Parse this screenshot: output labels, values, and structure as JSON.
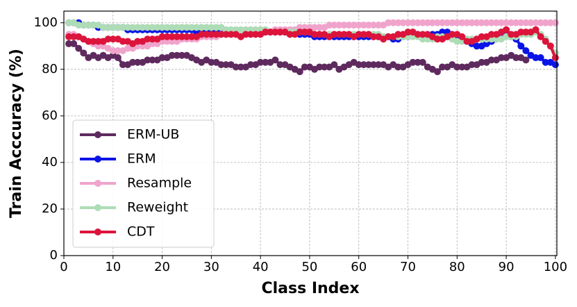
{
  "chart_data": {
    "type": "line",
    "xlabel": "Class Index",
    "ylabel": "Train Acccuracy (%)",
    "x": [
      1,
      2,
      3,
      4,
      5,
      6,
      7,
      8,
      9,
      10,
      11,
      12,
      13,
      14,
      15,
      16,
      17,
      18,
      19,
      20,
      21,
      22,
      23,
      24,
      25,
      26,
      27,
      28,
      29,
      30,
      31,
      32,
      33,
      34,
      35,
      36,
      37,
      38,
      39,
      40,
      41,
      42,
      43,
      44,
      45,
      46,
      47,
      48,
      49,
      50,
      51,
      52,
      53,
      54,
      55,
      56,
      57,
      58,
      59,
      60,
      61,
      62,
      63,
      64,
      65,
      66,
      67,
      68,
      69,
      70,
      71,
      72,
      73,
      74,
      75,
      76,
      77,
      78,
      79,
      80,
      81,
      82,
      83,
      84,
      85,
      86,
      87,
      88,
      89,
      90,
      91,
      92,
      93,
      94,
      95,
      96,
      97,
      98,
      99,
      100
    ],
    "xlim": [
      0,
      100.3
    ],
    "ylim": [
      0,
      105
    ],
    "xticks": [
      0,
      10,
      20,
      30,
      40,
      50,
      60,
      70,
      80,
      90,
      100
    ],
    "yticks": [
      0,
      20,
      40,
      60,
      80,
      100
    ],
    "grid": true,
    "legend": "lower left",
    "series": [
      {
        "name": "ERM-UB",
        "color": "#5e2a5e",
        "values": [
          91,
          91,
          89,
          87,
          85,
          86,
          85,
          86,
          85,
          86,
          85,
          82,
          82,
          83,
          83,
          83,
          84,
          84,
          84,
          85,
          85,
          86,
          86,
          86,
          86,
          85,
          84,
          83,
          84,
          83,
          83,
          82,
          82,
          82,
          81,
          81,
          81,
          82,
          82,
          83,
          83,
          83,
          84,
          82,
          82,
          81,
          80,
          79,
          81,
          81,
          80,
          81,
          81,
          81,
          82,
          80,
          81,
          82,
          83,
          82,
          82,
          82,
          82,
          82,
          82,
          81,
          82,
          81,
          81,
          82,
          83,
          83,
          83,
          81,
          80,
          79,
          81,
          81,
          82,
          81,
          81,
          81,
          82,
          82,
          83,
          83,
          84,
          84,
          85,
          85,
          86,
          85,
          85,
          84,
          null,
          null,
          null,
          null,
          null,
          null
        ]
      },
      {
        "name": "ERM",
        "color": "#0a14e6",
        "values": [
          100,
          100,
          100,
          99,
          99,
          99,
          98,
          98,
          98,
          98,
          98,
          98,
          97,
          97,
          97,
          97,
          97,
          97,
          97,
          97,
          97,
          97,
          97,
          97,
          97,
          97,
          96,
          96,
          96,
          96,
          96,
          96,
          96,
          96,
          96,
          96,
          96,
          96,
          96,
          96,
          96,
          96,
          96,
          96,
          96,
          96,
          96,
          95,
          95,
          95,
          94,
          94,
          94,
          94,
          94,
          94,
          94,
          94,
          94,
          94,
          94,
          94,
          94,
          94,
          94,
          94,
          93,
          93,
          94,
          94,
          95,
          95,
          94,
          94,
          95,
          95,
          96,
          96,
          95,
          94,
          93,
          92,
          91,
          90,
          90,
          91,
          92,
          93,
          94,
          95,
          94,
          93,
          90,
          88,
          86,
          85,
          85,
          83,
          83,
          82
        ]
      },
      {
        "name": "Resample",
        "color": "#f0a4cc",
        "values": [
          95,
          95,
          94,
          93,
          92,
          91,
          90,
          90,
          89,
          88,
          88,
          88,
          89,
          89,
          90,
          90,
          90,
          91,
          91,
          92,
          92,
          92,
          92,
          93,
          93,
          93,
          93,
          94,
          94,
          94,
          94,
          95,
          95,
          95,
          95,
          95,
          96,
          96,
          96,
          96,
          96,
          96,
          97,
          97,
          97,
          97,
          97,
          98,
          98,
          98,
          98,
          98,
          98,
          99,
          99,
          99,
          99,
          99,
          99,
          99,
          99,
          99,
          99,
          99,
          99,
          100,
          100,
          100,
          100,
          100,
          100,
          100,
          100,
          100,
          100,
          100,
          100,
          100,
          100,
          100,
          100,
          100,
          100,
          100,
          100,
          100,
          100,
          100,
          100,
          100,
          100,
          100,
          100,
          100,
          100,
          100,
          100,
          100,
          100,
          100
        ]
      },
      {
        "name": "Reweight",
        "color": "#aedcb6",
        "values": [
          100,
          100,
          99,
          99,
          99,
          99,
          99,
          98,
          98,
          98,
          98,
          98,
          98,
          98,
          98,
          98,
          98,
          98,
          98,
          98,
          98,
          98,
          98,
          98,
          98,
          98,
          98,
          98,
          98,
          98,
          98,
          98,
          97,
          97,
          97,
          97,
          97,
          97,
          97,
          97,
          97,
          96,
          96,
          96,
          96,
          96,
          96,
          96,
          96,
          96,
          95,
          95,
          95,
          95,
          95,
          95,
          95,
          95,
          95,
          95,
          95,
          95,
          95,
          95,
          94,
          94,
          94,
          94,
          94,
          94,
          94,
          94,
          93,
          93,
          93,
          94,
          94,
          94,
          93,
          92,
          92,
          93,
          93,
          93,
          93,
          93,
          93,
          93,
          93,
          94,
          94,
          94,
          95,
          95,
          95,
          96,
          95,
          93,
          90,
          87
        ]
      },
      {
        "name": "CDT",
        "color": "#dc143c",
        "values": [
          94,
          94,
          94,
          93,
          92,
          92,
          92,
          92,
          93,
          93,
          93,
          92,
          92,
          91,
          92,
          92,
          93,
          93,
          93,
          94,
          94,
          94,
          94,
          94,
          94,
          94,
          94,
          95,
          95,
          95,
          95,
          95,
          95,
          95,
          95,
          94,
          95,
          95,
          95,
          95,
          96,
          96,
          96,
          96,
          96,
          95,
          95,
          96,
          96,
          96,
          95,
          95,
          95,
          94,
          95,
          95,
          95,
          95,
          94,
          95,
          95,
          95,
          94,
          94,
          93,
          94,
          94,
          95,
          95,
          96,
          96,
          95,
          95,
          95,
          94,
          93,
          93,
          94,
          95,
          95,
          94,
          92,
          92,
          93,
          94,
          94,
          95,
          95,
          96,
          97,
          95,
          95,
          96,
          96,
          96,
          97,
          94,
          92,
          90,
          85
        ]
      }
    ]
  }
}
